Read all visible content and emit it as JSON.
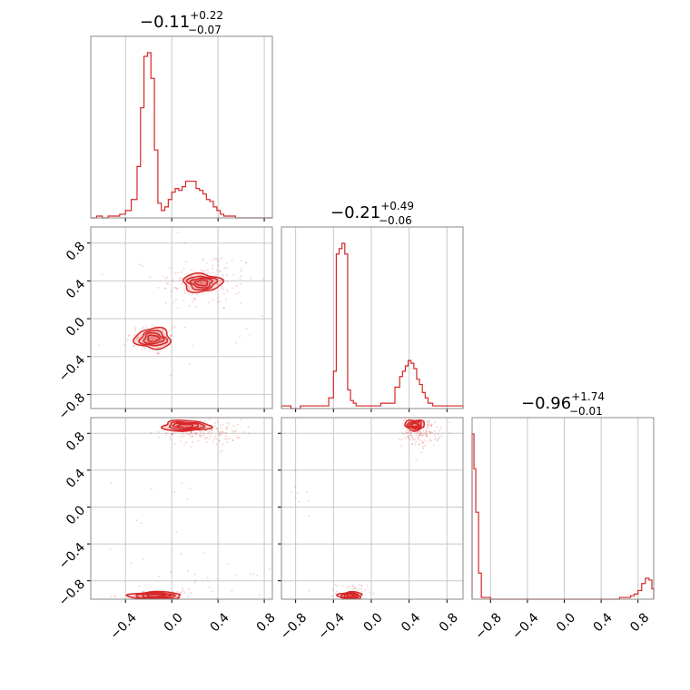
{
  "chart_data": {
    "type": "corner",
    "color": "#d62728",
    "titles": [
      {
        "value": "−0.11",
        "plus": "+0.22",
        "minus": "−0.07"
      },
      {
        "value": "−0.21",
        "plus": "+0.49",
        "minus": "−0.06"
      },
      {
        "value": "−0.96",
        "plus": "+1.74",
        "minus": "−0.01"
      }
    ],
    "axis_ranges": [
      [
        -0.7,
        0.87
      ],
      [
        -0.95,
        0.97
      ],
      [
        -1.0,
        0.97
      ]
    ],
    "grid": true,
    "x_ticks": {
      "col0": {
        "values": [
          -0.4,
          0.0,
          0.4,
          0.8
        ],
        "labels": [
          "−0.4",
          "0.0",
          "0.4",
          "0.8"
        ]
      },
      "col1": {
        "values": [
          -0.8,
          -0.4,
          0.0,
          0.4,
          0.8
        ],
        "labels": [
          "−0.8",
          "−0.4",
          "0.0",
          "0.4",
          "0.8"
        ]
      },
      "col2": {
        "values": [
          -0.8,
          -0.4,
          0.0,
          0.4,
          0.8
        ],
        "labels": [
          "−0.8",
          "−0.4",
          "0.0",
          "0.4",
          "0.8"
        ]
      }
    },
    "y_ticks": {
      "row1": {
        "values": [
          0.8,
          0.4,
          0.0,
          -0.4,
          -0.8
        ],
        "labels": [
          "0.8",
          "0.4",
          "0.0",
          "−0.4",
          "−0.8"
        ]
      },
      "row2": {
        "values": [
          0.8,
          0.4,
          0.0,
          -0.4,
          -0.8
        ],
        "labels": [
          "0.8",
          "0.4",
          "0.0",
          "−0.4",
          "−0.8"
        ]
      }
    },
    "histograms": [
      {
        "param": 0,
        "bin_edges": [
          -0.7,
          -0.65,
          -0.6,
          -0.55,
          -0.5,
          -0.45,
          -0.4,
          -0.35,
          -0.3,
          -0.27,
          -0.24,
          -0.21,
          -0.18,
          -0.15,
          -0.12,
          -0.09,
          -0.06,
          -0.03,
          0.0,
          0.03,
          0.06,
          0.09,
          0.12,
          0.15,
          0.18,
          0.21,
          0.24,
          0.27,
          0.3,
          0.33,
          0.36,
          0.39,
          0.42,
          0.45,
          0.5,
          0.55,
          0.6,
          0.7,
          0.87
        ],
        "values": [
          0,
          1,
          0,
          1,
          1,
          2,
          4,
          10,
          28,
          60,
          88,
          90,
          76,
          37,
          8,
          4,
          6,
          10,
          14,
          16,
          15,
          17,
          20,
          20,
          20,
          16,
          15,
          13,
          10,
          9,
          6,
          4,
          2,
          1,
          1,
          0,
          0,
          0
        ]
      },
      {
        "param": 1,
        "bin_edges": [
          -0.95,
          -0.85,
          -0.75,
          -0.65,
          -0.55,
          -0.45,
          -0.4,
          -0.37,
          -0.34,
          -0.31,
          -0.28,
          -0.25,
          -0.22,
          -0.19,
          -0.16,
          -0.13,
          -0.1,
          -0.05,
          0.0,
          0.05,
          0.1,
          0.15,
          0.2,
          0.25,
          0.3,
          0.33,
          0.36,
          0.39,
          0.42,
          0.45,
          0.48,
          0.51,
          0.54,
          0.57,
          0.6,
          0.65,
          0.7,
          0.75,
          0.8,
          0.9,
          0.97
        ],
        "values": [
          1,
          0,
          1,
          1,
          1,
          4,
          14,
          58,
          60,
          62,
          58,
          7,
          3,
          2,
          1,
          1,
          1,
          1,
          1,
          1,
          2,
          2,
          2,
          8,
          12,
          14,
          16,
          18,
          17,
          15,
          11,
          9,
          6,
          4,
          2,
          1,
          1,
          1,
          1,
          1
        ]
      },
      {
        "param": 2,
        "bin_edges": [
          -1.0,
          -0.98,
          -0.96,
          -0.93,
          -0.9,
          -0.87,
          -0.8,
          -0.6,
          -0.4,
          -0.2,
          0.0,
          0.2,
          0.4,
          0.6,
          0.68,
          0.72,
          0.76,
          0.8,
          0.84,
          0.88,
          0.92,
          0.95,
          0.97
        ],
        "values": [
          95,
          75,
          50,
          15,
          1,
          1,
          0,
          0,
          0,
          0,
          0,
          0,
          0,
          1,
          1,
          2,
          3,
          5,
          9,
          12,
          11,
          6
        ]
      }
    ],
    "contour_panels": [
      {
        "x_param": 0,
        "y_param": 1,
        "modes": [
          {
            "cx": -0.16,
            "cy": -0.21,
            "sx": 0.12,
            "sy": 0.085,
            "weight": 1.0
          },
          {
            "cx": 0.26,
            "cy": 0.38,
            "sx": 0.13,
            "sy": 0.075,
            "weight": 0.55
          }
        ],
        "scatter_modes": [
          {
            "cx": -0.16,
            "cy": -0.21,
            "sx": 0.12,
            "sy": 0.09,
            "n": 70
          },
          {
            "cx": 0.28,
            "cy": 0.4,
            "sx": 0.22,
            "sy": 0.16,
            "n": 140
          },
          {
            "cx": 0.0,
            "cy": 0.0,
            "sx": 0.55,
            "sy": 0.55,
            "n": 30
          }
        ]
      },
      {
        "x_param": 0,
        "y_param": 2,
        "modes": [
          {
            "cx": 0.12,
            "cy": 0.88,
            "sx": 0.16,
            "sy": 0.045,
            "weight": 0.9
          },
          {
            "cx": -0.14,
            "cy": -0.96,
            "sx": 0.18,
            "sy": 0.03,
            "weight": 1.0
          }
        ],
        "scatter_modes": [
          {
            "cx": 0.28,
            "cy": 0.82,
            "sx": 0.16,
            "sy": 0.07,
            "n": 150
          },
          {
            "cx": -0.12,
            "cy": -0.95,
            "sx": 0.18,
            "sy": 0.03,
            "n": 50
          },
          {
            "cx": 0.3,
            "cy": -0.8,
            "sx": 0.25,
            "sy": 0.07,
            "n": 20
          },
          {
            "cx": 0.0,
            "cy": 0.0,
            "sx": 0.55,
            "sy": 0.55,
            "n": 20
          }
        ]
      },
      {
        "x_param": 1,
        "y_param": 2,
        "modes": [
          {
            "cx": 0.46,
            "cy": 0.89,
            "sx": 0.08,
            "sy": 0.045,
            "weight": 0.9
          },
          {
            "cx": -0.22,
            "cy": -0.96,
            "sx": 0.1,
            "sy": 0.03,
            "weight": 1.0
          }
        ],
        "scatter_modes": [
          {
            "cx": 0.52,
            "cy": 0.82,
            "sx": 0.1,
            "sy": 0.08,
            "n": 150
          },
          {
            "cx": -0.22,
            "cy": -0.92,
            "sx": 0.08,
            "sy": 0.05,
            "n": 50
          },
          {
            "cx": -0.8,
            "cy": 0.0,
            "sx": 0.1,
            "sy": 0.3,
            "n": 10
          }
        ]
      }
    ]
  }
}
